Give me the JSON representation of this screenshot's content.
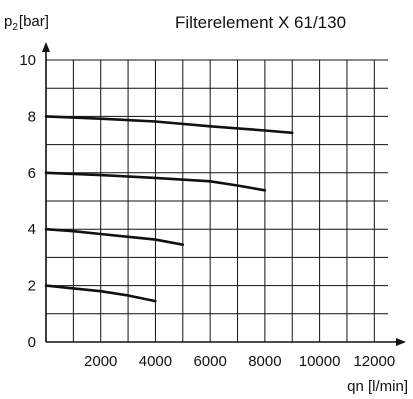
{
  "chart_data": {
    "type": "line",
    "title": "Filterelement X 61/130",
    "ylabel": {
      "base": "p",
      "sub": "2",
      "unit": "[bar]"
    },
    "xlabel": "qn [l/min]",
    "xlim": [
      0,
      12500
    ],
    "ylim": [
      0,
      10
    ],
    "xticks": [
      2000,
      4000,
      6000,
      8000,
      10000,
      12000
    ],
    "xtick_labels": [
      "2000",
      "4000",
      "6000",
      "8000",
      "10000",
      "12000"
    ],
    "yticks": [
      0,
      2,
      4,
      6,
      8,
      10
    ],
    "ytick_labels": [
      "0",
      "2",
      "4",
      "6",
      "8",
      "10"
    ],
    "grid": true,
    "series": [
      {
        "x": [
          0,
          1000,
          2000,
          3000,
          4000
        ],
        "y": [
          2.0,
          1.9,
          1.8,
          1.65,
          1.45
        ]
      },
      {
        "x": [
          0,
          1000,
          2000,
          3000,
          4000,
          5000
        ],
        "y": [
          4.0,
          3.93,
          3.83,
          3.73,
          3.63,
          3.45
        ]
      },
      {
        "x": [
          0,
          2000,
          4000,
          6000,
          7000,
          8000
        ],
        "y": [
          6.0,
          5.92,
          5.82,
          5.7,
          5.55,
          5.38
        ]
      },
      {
        "x": [
          0,
          2000,
          4000,
          6000,
          8000,
          9000
        ],
        "y": [
          8.0,
          7.92,
          7.82,
          7.65,
          7.5,
          7.42
        ]
      }
    ]
  }
}
